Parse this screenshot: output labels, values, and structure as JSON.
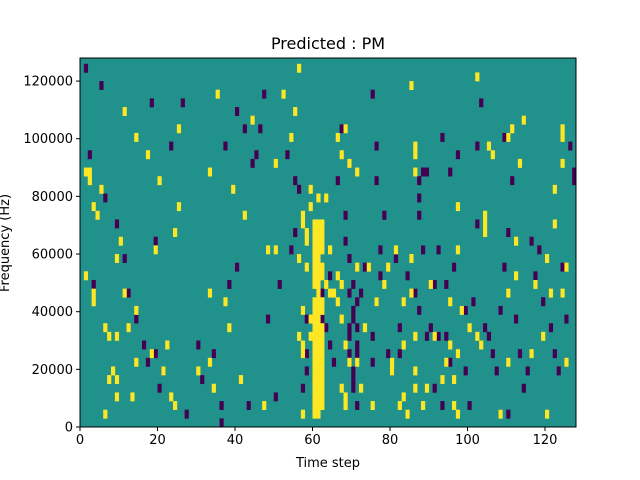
{
  "chart_data": {
    "type": "heatmap",
    "title": "Predicted : PM",
    "xlabel": "Time step",
    "ylabel": "Frequency (Hz)",
    "xlim": [
      0,
      128
    ],
    "ylim": [
      0,
      128000
    ],
    "x_ticks": [
      0,
      20,
      40,
      60,
      80,
      100,
      120
    ],
    "y_ticks": [
      0,
      20000,
      40000,
      60000,
      80000,
      100000,
      120000
    ],
    "colors": {
      "background": "#21918c",
      "high": "#fde725",
      "low": "#440154"
    },
    "background_value": 0,
    "grid": false,
    "cells_high": [
      [
        2,
        84
      ],
      [
        1,
        87
      ],
      [
        2,
        87
      ],
      [
        5,
        81
      ],
      [
        3,
        75
      ],
      [
        4,
        72
      ],
      [
        1,
        51
      ],
      [
        3,
        45
      ],
      [
        3,
        42
      ],
      [
        6,
        33
      ],
      [
        7,
        30
      ],
      [
        8,
        18
      ],
      [
        7,
        15
      ],
      [
        9,
        15
      ],
      [
        9,
        30
      ],
      [
        9,
        9
      ],
      [
        6,
        3
      ],
      [
        10,
        63
      ],
      [
        9,
        57
      ],
      [
        11,
        45
      ],
      [
        12,
        33
      ],
      [
        14,
        21
      ],
      [
        13,
        9
      ],
      [
        14,
        39
      ],
      [
        11,
        108
      ],
      [
        14,
        99
      ],
      [
        17,
        93
      ],
      [
        20,
        84
      ],
      [
        19,
        60
      ],
      [
        18,
        24
      ],
      [
        22,
        27
      ],
      [
        21,
        18
      ],
      [
        24,
        66
      ],
      [
        24,
        6
      ],
      [
        23,
        9
      ],
      [
        25,
        75
      ],
      [
        25,
        102
      ],
      [
        30,
        18
      ],
      [
        33,
        45
      ],
      [
        33,
        21
      ],
      [
        34,
        12
      ],
      [
        33,
        87
      ],
      [
        35,
        114
      ],
      [
        38,
        33
      ],
      [
        37,
        42
      ],
      [
        39,
        81
      ],
      [
        41,
        15
      ],
      [
        42,
        72
      ],
      [
        44,
        105
      ],
      [
        48,
        60
      ],
      [
        47,
        6
      ],
      [
        50,
        90
      ],
      [
        50,
        60
      ],
      [
        52,
        114
      ],
      [
        55,
        108
      ],
      [
        56,
        123
      ],
      [
        54,
        99
      ],
      [
        56,
        30
      ],
      [
        57,
        3
      ],
      [
        57,
        39
      ],
      [
        59,
        81
      ],
      [
        56,
        57
      ],
      [
        58,
        54
      ],
      [
        57,
        24
      ],
      [
        57,
        27
      ],
      [
        59,
        36
      ],
      [
        59,
        30
      ],
      [
        58,
        66
      ],
      [
        58,
        63
      ],
      [
        57,
        69
      ],
      [
        57,
        72
      ],
      [
        60,
        3
      ],
      [
        60,
        6
      ],
      [
        60,
        9
      ],
      [
        60,
        12
      ],
      [
        60,
        15
      ],
      [
        60,
        18
      ],
      [
        60,
        21
      ],
      [
        60,
        24
      ],
      [
        60,
        27
      ],
      [
        60,
        30
      ],
      [
        60,
        33
      ],
      [
        60,
        36
      ],
      [
        60,
        39
      ],
      [
        60,
        42
      ],
      [
        60,
        48
      ],
      [
        60,
        51
      ],
      [
        60,
        54
      ],
      [
        60,
        57
      ],
      [
        60,
        60
      ],
      [
        60,
        63
      ],
      [
        60,
        66
      ],
      [
        60,
        69
      ],
      [
        61,
        3
      ],
      [
        61,
        6
      ],
      [
        61,
        9
      ],
      [
        61,
        12
      ],
      [
        61,
        15
      ],
      [
        61,
        18
      ],
      [
        61,
        21
      ],
      [
        61,
        24
      ],
      [
        61,
        27
      ],
      [
        61,
        30
      ],
      [
        61,
        33
      ],
      [
        61,
        36
      ],
      [
        61,
        39
      ],
      [
        61,
        42
      ],
      [
        61,
        45
      ],
      [
        61,
        48
      ],
      [
        61,
        51
      ],
      [
        61,
        54
      ],
      [
        61,
        57
      ],
      [
        61,
        60
      ],
      [
        61,
        63
      ],
      [
        61,
        66
      ],
      [
        61,
        69
      ],
      [
        62,
        6
      ],
      [
        62,
        9
      ],
      [
        62,
        12
      ],
      [
        62,
        15
      ],
      [
        62,
        18
      ],
      [
        62,
        21
      ],
      [
        62,
        24
      ],
      [
        62,
        27
      ],
      [
        62,
        30
      ],
      [
        62,
        33
      ],
      [
        62,
        39
      ],
      [
        62,
        42
      ],
      [
        62,
        51
      ],
      [
        62,
        54
      ],
      [
        62,
        60
      ],
      [
        62,
        63
      ],
      [
        62,
        66
      ],
      [
        62,
        69
      ],
      [
        59,
        75
      ],
      [
        61,
        78
      ],
      [
        63,
        78
      ],
      [
        63,
        48
      ],
      [
        64,
        45
      ],
      [
        64,
        60
      ],
      [
        65,
        45
      ],
      [
        66,
        51
      ],
      [
        66,
        42
      ],
      [
        67,
        48
      ],
      [
        67,
        36
      ],
      [
        68,
        27
      ],
      [
        69,
        21
      ],
      [
        68,
        9
      ],
      [
        67,
        12
      ],
      [
        68,
        6
      ],
      [
        66,
        99
      ],
      [
        67,
        93
      ],
      [
        68,
        102
      ],
      [
        69,
        90
      ],
      [
        71,
        87
      ],
      [
        71,
        54
      ],
      [
        71,
        21
      ],
      [
        72,
        12
      ],
      [
        73,
        33
      ],
      [
        74,
        54
      ],
      [
        75,
        6
      ],
      [
        76,
        42
      ],
      [
        78,
        48
      ],
      [
        79,
        54
      ],
      [
        80,
        21
      ],
      [
        80,
        18
      ],
      [
        81,
        60
      ],
      [
        82,
        6
      ],
      [
        83,
        9
      ],
      [
        84,
        3
      ],
      [
        83,
        27
      ],
      [
        83,
        42
      ],
      [
        86,
        18
      ],
      [
        86,
        30
      ],
      [
        86,
        12
      ],
      [
        85,
        45
      ],
      [
        85,
        57
      ],
      [
        86,
        87
      ],
      [
        86,
        93
      ],
      [
        86,
        96
      ],
      [
        85,
        117
      ],
      [
        88,
        6
      ],
      [
        89,
        12
      ],
      [
        90,
        48
      ],
      [
        91,
        30
      ],
      [
        93,
        15
      ],
      [
        94,
        21
      ],
      [
        95,
        42
      ],
      [
        95,
        27
      ],
      [
        96,
        6
      ],
      [
        96,
        15
      ],
      [
        97,
        24
      ],
      [
        97,
        60
      ],
      [
        97,
        3
      ],
      [
        97,
        75
      ],
      [
        98,
        39
      ],
      [
        100,
        33
      ],
      [
        102,
        30
      ],
      [
        103,
        27
      ],
      [
        102,
        120
      ],
      [
        104,
        72
      ],
      [
        104,
        69
      ],
      [
        105,
        96
      ],
      [
        106,
        93
      ],
      [
        104,
        66
      ],
      [
        108,
        3
      ],
      [
        110,
        21
      ],
      [
        110,
        45
      ],
      [
        112,
        51
      ],
      [
        112,
        63
      ],
      [
        113,
        90
      ],
      [
        114,
        105
      ],
      [
        116,
        24
      ],
      [
        117,
        48
      ],
      [
        120,
        57
      ],
      [
        121,
        45
      ],
      [
        119,
        30
      ],
      [
        120,
        3
      ],
      [
        122,
        69
      ],
      [
        122,
        81
      ],
      [
        124,
        90
      ],
      [
        124,
        99
      ],
      [
        124,
        102
      ],
      [
        124,
        45
      ],
      [
        125,
        54
      ],
      [
        125,
        21
      ],
      [
        110,
        99
      ],
      [
        111,
        102
      ]
    ],
    "cells_low": [
      [
        1,
        123
      ],
      [
        2,
        93
      ],
      [
        3,
        48
      ],
      [
        5,
        117
      ],
      [
        6,
        78
      ],
      [
        9,
        69
      ],
      [
        11,
        57
      ],
      [
        12,
        45
      ],
      [
        14,
        36
      ],
      [
        16,
        27
      ],
      [
        17,
        21
      ],
      [
        19,
        24
      ],
      [
        20,
        12
      ],
      [
        21,
        18
      ],
      [
        18,
        111
      ],
      [
        19,
        63
      ],
      [
        23,
        96
      ],
      [
        26,
        111
      ],
      [
        27,
        3
      ],
      [
        30,
        27
      ],
      [
        31,
        15
      ],
      [
        34,
        24
      ],
      [
        36,
        0
      ],
      [
        36,
        6
      ],
      [
        37,
        96
      ],
      [
        38,
        48
      ],
      [
        40,
        54
      ],
      [
        40,
        108
      ],
      [
        42,
        102
      ],
      [
        44,
        90
      ],
      [
        43,
        6
      ],
      [
        45,
        93
      ],
      [
        46,
        102
      ],
      [
        47,
        114
      ],
      [
        48,
        36
      ],
      [
        50,
        9
      ],
      [
        51,
        48
      ],
      [
        53,
        93
      ],
      [
        55,
        84
      ],
      [
        57,
        12
      ],
      [
        54,
        60
      ],
      [
        55,
        66
      ],
      [
        56,
        81
      ],
      [
        58,
        18
      ],
      [
        58,
        24
      ],
      [
        58,
        36
      ],
      [
        61,
        30
      ],
      [
        62,
        36
      ],
      [
        62,
        45
      ],
      [
        63,
        33
      ],
      [
        64,
        51
      ],
      [
        64,
        27
      ],
      [
        65,
        21
      ],
      [
        66,
        84
      ],
      [
        67,
        102
      ],
      [
        68,
        72
      ],
      [
        68,
        63
      ],
      [
        69,
        45
      ],
      [
        69,
        57
      ],
      [
        69,
        33
      ],
      [
        69,
        30
      ],
      [
        70,
        36
      ],
      [
        70,
        39
      ],
      [
        69,
        24
      ],
      [
        70,
        18
      ],
      [
        70,
        15
      ],
      [
        70,
        48
      ],
      [
        71,
        42
      ],
      [
        71,
        33
      ],
      [
        71,
        24
      ],
      [
        70,
        12
      ],
      [
        71,
        6
      ],
      [
        71,
        27
      ],
      [
        72,
        45
      ],
      [
        73,
        54
      ],
      [
        75,
        21
      ],
      [
        75,
        30
      ],
      [
        76,
        42
      ],
      [
        77,
        51
      ],
      [
        77,
        60
      ],
      [
        76,
        96
      ],
      [
        75,
        114
      ],
      [
        76,
        84
      ],
      [
        78,
        72
      ],
      [
        79,
        24
      ],
      [
        80,
        18
      ],
      [
        81,
        57
      ],
      [
        82,
        24
      ],
      [
        82,
        33
      ],
      [
        84,
        51
      ],
      [
        86,
        45
      ],
      [
        87,
        39
      ],
      [
        87,
        72
      ],
      [
        87,
        78
      ],
      [
        88,
        60
      ],
      [
        87,
        84
      ],
      [
        88,
        87
      ],
      [
        89,
        87
      ],
      [
        89,
        30
      ],
      [
        90,
        33
      ],
      [
        91,
        12
      ],
      [
        91,
        48
      ],
      [
        92,
        60
      ],
      [
        93,
        99
      ],
      [
        92,
        30
      ],
      [
        93,
        6
      ],
      [
        94,
        48
      ],
      [
        94,
        30
      ],
      [
        95,
        21
      ],
      [
        96,
        54
      ],
      [
        95,
        87
      ],
      [
        97,
        93
      ],
      [
        99,
        39
      ],
      [
        99,
        18
      ],
      [
        100,
        6
      ],
      [
        101,
        42
      ],
      [
        102,
        96
      ],
      [
        102,
        69
      ],
      [
        103,
        111
      ],
      [
        104,
        33
      ],
      [
        105,
        30
      ],
      [
        106,
        24
      ],
      [
        107,
        18
      ],
      [
        108,
        39
      ],
      [
        109,
        99
      ],
      [
        109,
        54
      ],
      [
        110,
        66
      ],
      [
        110,
        3
      ],
      [
        111,
        84
      ],
      [
        112,
        36
      ],
      [
        113,
        24
      ],
      [
        114,
        12
      ],
      [
        115,
        18
      ],
      [
        116,
        63
      ],
      [
        117,
        51
      ],
      [
        118,
        60
      ],
      [
        119,
        42
      ],
      [
        121,
        33
      ],
      [
        122,
        24
      ],
      [
        123,
        18
      ],
      [
        124,
        54
      ],
      [
        125,
        36
      ],
      [
        127,
        87
      ],
      [
        127,
        84
      ],
      [
        126,
        96
      ]
    ]
  }
}
